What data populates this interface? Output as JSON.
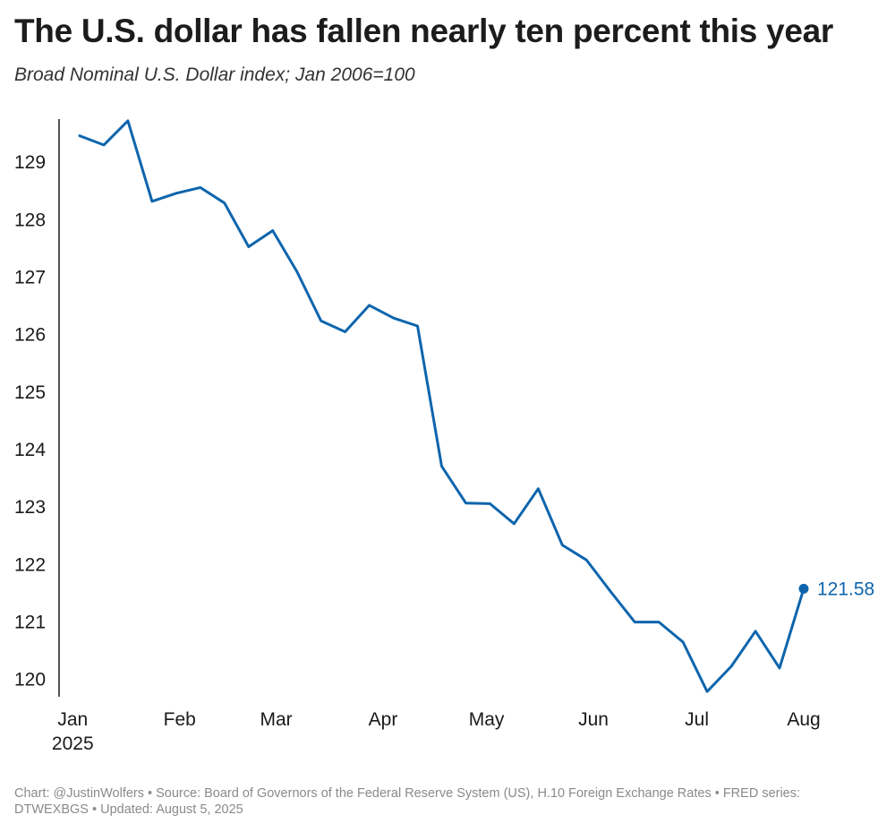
{
  "title": "The U.S. dollar has fallen nearly ten percent this year",
  "subtitle": "Broad Nominal U.S. Dollar index; Jan 2006=100",
  "footer": "Chart: @JustinWolfers • Source: Board of Governors of the Federal Reserve System (US), H.10 Foreign Exchange Rates • FRED series: DTWEXBGS • Updated: August 5, 2025",
  "colors": {
    "line": "#0e65ad",
    "axis": "#1a1a1a"
  },
  "chart_data": {
    "type": "line",
    "title": "The U.S. dollar has fallen nearly ten percent this year",
    "subtitle": "Broad Nominal U.S. Dollar index; Jan 2006=100",
    "xlabel": "",
    "ylabel": "",
    "x_start": "2025-01-03",
    "x_end": "2025-08-01",
    "ylim": [
      119.7,
      129.75
    ],
    "grid": false,
    "legend": "none",
    "y_ticks": [
      120,
      121,
      122,
      123,
      124,
      125,
      126,
      127,
      128,
      129
    ],
    "x_ticks": [
      {
        "date": "2025-01-01",
        "label": "Jan",
        "sublabel": "2025"
      },
      {
        "date": "2025-02-01",
        "label": "Feb",
        "sublabel": ""
      },
      {
        "date": "2025-03-01",
        "label": "Mar",
        "sublabel": ""
      },
      {
        "date": "2025-04-01",
        "label": "Apr",
        "sublabel": ""
      },
      {
        "date": "2025-05-01",
        "label": "May",
        "sublabel": ""
      },
      {
        "date": "2025-06-01",
        "label": "Jun",
        "sublabel": ""
      },
      {
        "date": "2025-07-01",
        "label": "Jul",
        "sublabel": ""
      },
      {
        "date": "2025-08-01",
        "label": "Aug",
        "sublabel": ""
      }
    ],
    "series": [
      {
        "color": "#0e65ad",
        "end_label": "121.58",
        "points": [
          {
            "x": "2025-01-03",
            "y": 129.46
          },
          {
            "x": "2025-01-10",
            "y": 129.3
          },
          {
            "x": "2025-01-17",
            "y": 129.72
          },
          {
            "x": "2025-01-24",
            "y": 128.32
          },
          {
            "x": "2025-01-31",
            "y": 128.46
          },
          {
            "x": "2025-02-07",
            "y": 128.56
          },
          {
            "x": "2025-02-14",
            "y": 128.29
          },
          {
            "x": "2025-02-21",
            "y": 127.53
          },
          {
            "x": "2025-02-28",
            "y": 127.81
          },
          {
            "x": "2025-03-07",
            "y": 127.1
          },
          {
            "x": "2025-03-14",
            "y": 126.24
          },
          {
            "x": "2025-03-21",
            "y": 126.05
          },
          {
            "x": "2025-03-28",
            "y": 126.51
          },
          {
            "x": "2025-04-04",
            "y": 126.29
          },
          {
            "x": "2025-04-11",
            "y": 126.15
          },
          {
            "x": "2025-04-18",
            "y": 123.71
          },
          {
            "x": "2025-04-25",
            "y": 123.07
          },
          {
            "x": "2025-05-02",
            "y": 123.06
          },
          {
            "x": "2025-05-09",
            "y": 122.71
          },
          {
            "x": "2025-05-16",
            "y": 123.32
          },
          {
            "x": "2025-05-23",
            "y": 122.34
          },
          {
            "x": "2025-05-30",
            "y": 122.08
          },
          {
            "x": "2025-06-06",
            "y": 121.53
          },
          {
            "x": "2025-06-13",
            "y": 121.0
          },
          {
            "x": "2025-06-20",
            "y": 121.0
          },
          {
            "x": "2025-06-27",
            "y": 120.65
          },
          {
            "x": "2025-07-04",
            "y": 119.79
          },
          {
            "x": "2025-07-11",
            "y": 120.23
          },
          {
            "x": "2025-07-18",
            "y": 120.84
          },
          {
            "x": "2025-07-25",
            "y": 120.2
          },
          {
            "x": "2025-08-01",
            "y": 121.58
          }
        ]
      }
    ]
  }
}
